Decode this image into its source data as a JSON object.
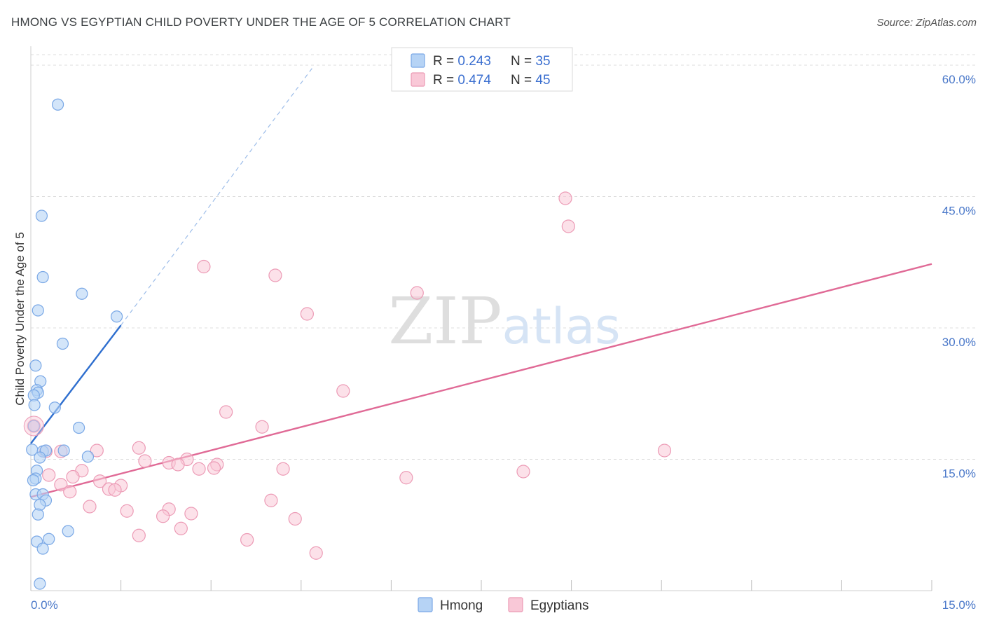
{
  "header": {
    "title": "HMONG VS EGYPTIAN CHILD POVERTY UNDER THE AGE OF 5 CORRELATION CHART",
    "source": "Source: ZipAtlas.com"
  },
  "chart_data": {
    "type": "scatter",
    "title": "HMONG VS EGYPTIAN CHILD POVERTY UNDER THE AGE OF 5 CORRELATION CHART",
    "xlabel": "",
    "ylabel": "Child Poverty Under the Age of 5",
    "xlim": [
      0,
      15
    ],
    "ylim": [
      0,
      60
    ],
    "x_tick_labels": [
      "0.0%",
      "15.0%"
    ],
    "y_ticks": [
      15,
      30,
      45,
      60
    ],
    "y_tick_labels": [
      "15.0%",
      "30.0%",
      "45.0%",
      "60.0%"
    ],
    "watermark": "ZIPatlas",
    "colors": {
      "hmong_fill": "#b6d3f5",
      "hmong_stroke": "#7aa8e6",
      "hmong_line": "#2f6fcf",
      "egypt_fill": "#f9c8d7",
      "egypt_stroke": "#ec9ab5",
      "egypt_line": "#e06a96"
    },
    "legend": {
      "r_label": "R = ",
      "n_label": "N = ",
      "entries": [
        {
          "name": "Hmong",
          "r": "0.243",
          "n": "35"
        },
        {
          "name": "Egyptians",
          "r": "0.474",
          "n": "45"
        }
      ]
    },
    "series": [
      {
        "name": "Hmong",
        "points": [
          [
            0.45,
            55.5
          ],
          [
            0.18,
            42.8
          ],
          [
            0.2,
            35.8
          ],
          [
            0.85,
            33.9
          ],
          [
            0.12,
            32.0
          ],
          [
            1.43,
            31.3
          ],
          [
            0.53,
            28.2
          ],
          [
            0.08,
            25.7
          ],
          [
            0.16,
            23.9
          ],
          [
            0.1,
            22.9
          ],
          [
            0.12,
            22.6
          ],
          [
            0.05,
            22.3
          ],
          [
            0.06,
            21.2
          ],
          [
            0.4,
            20.9
          ],
          [
            0.05,
            18.8
          ],
          [
            0.8,
            18.6
          ],
          [
            0.02,
            16.1
          ],
          [
            0.2,
            15.9
          ],
          [
            0.25,
            16.0
          ],
          [
            0.55,
            16.0
          ],
          [
            0.15,
            15.2
          ],
          [
            0.95,
            15.3
          ],
          [
            0.1,
            13.7
          ],
          [
            0.08,
            12.8
          ],
          [
            0.04,
            12.6
          ],
          [
            0.08,
            11.0
          ],
          [
            0.2,
            11.0
          ],
          [
            0.25,
            10.3
          ],
          [
            0.15,
            9.8
          ],
          [
            0.12,
            8.7
          ],
          [
            0.62,
            6.8
          ],
          [
            0.3,
            5.9
          ],
          [
            0.1,
            5.6
          ],
          [
            0.2,
            4.8
          ],
          [
            0.15,
            0.8
          ]
        ],
        "trend": {
          "x0": 0.0,
          "y0": 16.8,
          "x1": 1.5,
          "y1": 30.3
        },
        "trend_extended": {
          "x0": 1.5,
          "y0": 30.3,
          "x1": 4.7,
          "y1": 59.8
        }
      },
      {
        "name": "Egyptians",
        "points": [
          [
            8.9,
            44.8
          ],
          [
            8.95,
            41.6
          ],
          [
            2.88,
            37.0
          ],
          [
            4.07,
            36.0
          ],
          [
            6.43,
            34.0
          ],
          [
            4.6,
            31.6
          ],
          [
            5.2,
            22.8
          ],
          [
            3.25,
            20.4
          ],
          [
            0.05,
            18.8
          ],
          [
            3.85,
            18.7
          ],
          [
            1.8,
            16.3
          ],
          [
            10.55,
            16.0
          ],
          [
            0.25,
            15.9
          ],
          [
            1.1,
            16.0
          ],
          [
            0.5,
            15.9
          ],
          [
            2.6,
            15.0
          ],
          [
            1.9,
            14.8
          ],
          [
            2.3,
            14.6
          ],
          [
            2.45,
            14.4
          ],
          [
            3.1,
            14.4
          ],
          [
            3.05,
            14.0
          ],
          [
            2.8,
            13.9
          ],
          [
            4.2,
            13.9
          ],
          [
            0.85,
            13.7
          ],
          [
            8.2,
            13.6
          ],
          [
            0.3,
            13.2
          ],
          [
            6.25,
            12.9
          ],
          [
            0.7,
            13.0
          ],
          [
            1.15,
            12.5
          ],
          [
            0.5,
            12.1
          ],
          [
            1.5,
            12.0
          ],
          [
            1.3,
            11.6
          ],
          [
            1.4,
            11.5
          ],
          [
            0.65,
            11.3
          ],
          [
            4.0,
            10.3
          ],
          [
            0.98,
            9.6
          ],
          [
            2.3,
            9.3
          ],
          [
            1.6,
            9.1
          ],
          [
            2.67,
            8.8
          ],
          [
            2.2,
            8.5
          ],
          [
            4.4,
            8.2
          ],
          [
            2.5,
            7.1
          ],
          [
            1.8,
            6.3
          ],
          [
            3.6,
            5.8
          ],
          [
            4.75,
            4.3
          ]
        ],
        "trend": {
          "x0": 0.0,
          "y0": 10.7,
          "x1": 15.0,
          "y1": 37.3
        }
      }
    ]
  }
}
